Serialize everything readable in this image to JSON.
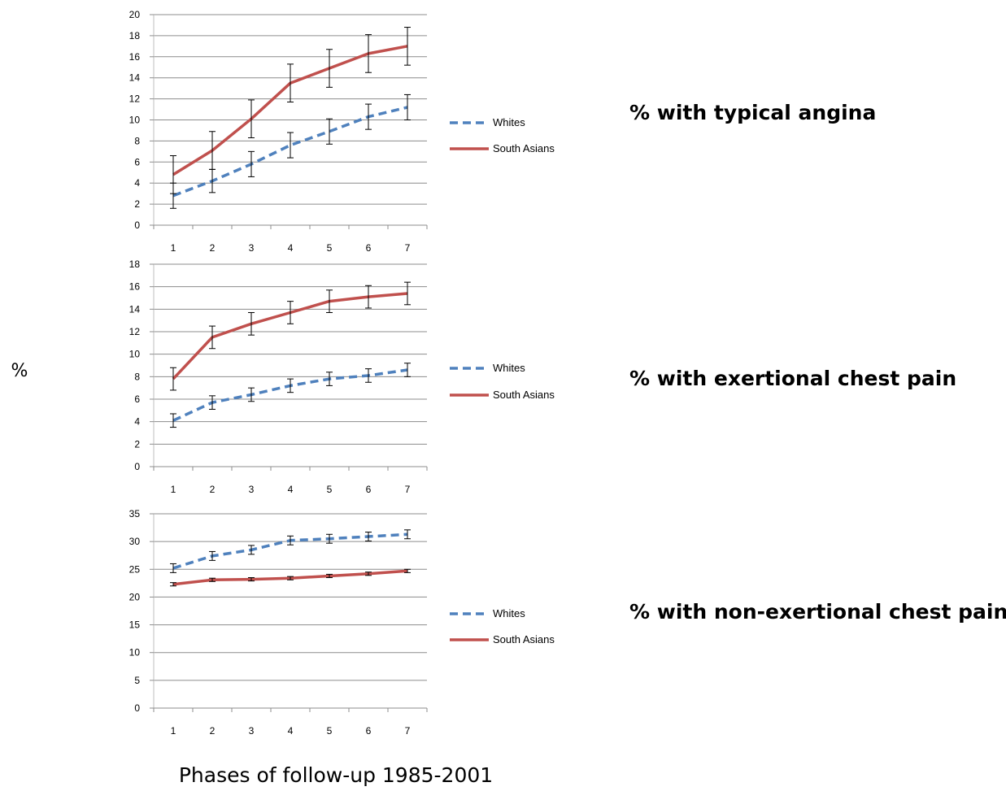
{
  "figure": {
    "ylabel": "%",
    "xlabel": "Phases of follow-up 1985-2001"
  },
  "chart_data": [
    {
      "type": "line",
      "title": "% with typical angina",
      "categories": [
        "1",
        "2",
        "3",
        "4",
        "5",
        "6",
        "7"
      ],
      "ylim": [
        0,
        20
      ],
      "yticks": [
        "0",
        "2",
        "4",
        "6",
        "8",
        "10",
        "12",
        "14",
        "16",
        "18",
        "20"
      ],
      "grid": true,
      "legend_position": "right",
      "series": [
        {
          "name": "Whites",
          "style": "dashed",
          "color": "#4F81BD",
          "values": [
            2.8,
            4.2,
            5.8,
            7.6,
            8.9,
            10.3,
            11.2
          ],
          "err": [
            1.2,
            1.1,
            1.2,
            1.2,
            1.2,
            1.2,
            1.2
          ]
        },
        {
          "name": "South Asians",
          "style": "solid",
          "color": "#C0504D",
          "values": [
            4.8,
            7.1,
            10.1,
            13.5,
            14.9,
            16.3,
            17.0
          ],
          "err": [
            1.8,
            1.8,
            1.8,
            1.8,
            1.8,
            1.8,
            1.8
          ]
        }
      ]
    },
    {
      "type": "line",
      "title": "% with exertional chest pain",
      "categories": [
        "1",
        "2",
        "3",
        "4",
        "5",
        "6",
        "7"
      ],
      "ylim": [
        0,
        18
      ],
      "yticks": [
        "0",
        "2",
        "4",
        "6",
        "8",
        "10",
        "12",
        "14",
        "16",
        "18"
      ],
      "grid": true,
      "legend_position": "right",
      "series": [
        {
          "name": "Whites",
          "style": "dashed",
          "color": "#4F81BD",
          "values": [
            4.1,
            5.7,
            6.4,
            7.2,
            7.8,
            8.1,
            8.6
          ],
          "err": [
            0.6,
            0.6,
            0.6,
            0.6,
            0.6,
            0.6,
            0.6
          ]
        },
        {
          "name": "South Asians",
          "style": "solid",
          "color": "#C0504D",
          "values": [
            7.8,
            11.5,
            12.7,
            13.7,
            14.7,
            15.1,
            15.4
          ],
          "err": [
            1.0,
            1.0,
            1.0,
            1.0,
            1.0,
            1.0,
            1.0
          ]
        }
      ]
    },
    {
      "type": "line",
      "title": "% with non-exertional chest pain",
      "categories": [
        "1",
        "2",
        "3",
        "4",
        "5",
        "6",
        "7"
      ],
      "ylim": [
        0,
        35
      ],
      "yticks": [
        "0",
        "5",
        "10",
        "15",
        "20",
        "25",
        "30",
        "35"
      ],
      "grid": true,
      "legend_position": "right",
      "series": [
        {
          "name": "Whites",
          "style": "dashed",
          "color": "#4F81BD",
          "values": [
            25.2,
            27.4,
            28.5,
            30.2,
            30.5,
            30.9,
            31.3
          ],
          "err": [
            0.8,
            0.8,
            0.8,
            0.8,
            0.8,
            0.8,
            0.8
          ]
        },
        {
          "name": "South Asians",
          "style": "solid",
          "color": "#C0504D",
          "values": [
            22.3,
            23.1,
            23.2,
            23.4,
            23.8,
            24.2,
            24.7
          ],
          "err": [
            0.3,
            0.3,
            0.3,
            0.3,
            0.3,
            0.3,
            0.3
          ]
        }
      ]
    }
  ]
}
